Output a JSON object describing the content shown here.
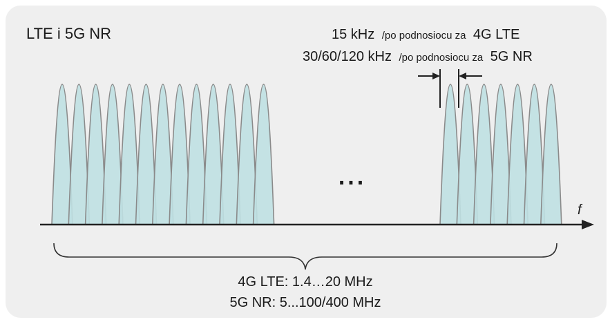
{
  "diagram": {
    "title": "LTE i 5G NR",
    "spacing_lte": {
      "value": "15 kHz",
      "connector": "/po podnosiocu za",
      "tech": "4G LTE"
    },
    "spacing_nr": {
      "value": "30/60/120 kHz",
      "connector": "/po podnosiocu za",
      "tech": "5G NR"
    },
    "ellipsis": "...",
    "axis_label": "f",
    "bandwidth_lte": "4G LTE: 1.4…20 MHz",
    "bandwidth_nr": "5G NR: 5...100/400 MHz",
    "left_subcarrier_count": 13,
    "right_subcarrier_count": 7,
    "colors": {
      "subcarrier_fill": "#bfe0e2",
      "subcarrier_stroke": "#8a8a8a",
      "axis": "#222222",
      "panel": "#efefef"
    }
  }
}
